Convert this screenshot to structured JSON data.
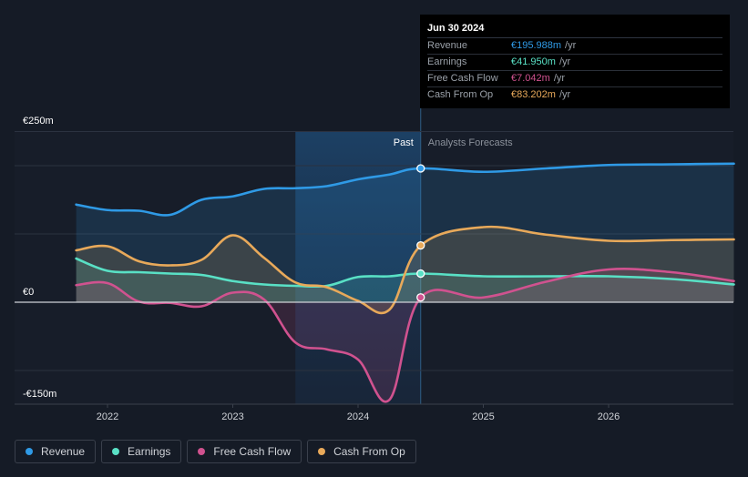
{
  "chart_data": {
    "type": "area",
    "x_ticks": [
      "2022",
      "2023",
      "2024",
      "2025",
      "2026"
    ],
    "y_tick_labels": [
      "€250m",
      "€0",
      "-€150m"
    ],
    "ylim": [
      -150,
      250
    ],
    "y_unit": "€m",
    "past_label": "Past",
    "forecast_label": "Analysts Forecasts",
    "divider_date": 2024.5,
    "highlight_range": [
      2023.5,
      2024.5
    ],
    "grid": true,
    "legend_position": "bottom-left",
    "series": [
      {
        "name": "Revenue",
        "color": "#2f9ae6",
        "x": [
          2021.75,
          2022.0,
          2022.25,
          2022.5,
          2022.75,
          2023.0,
          2023.25,
          2023.5,
          2023.75,
          2024.0,
          2024.25,
          2024.5,
          2025.0,
          2025.5,
          2026.0,
          2026.5,
          2027.0
        ],
        "y": [
          143,
          135,
          134,
          128,
          150,
          155,
          166,
          167,
          170,
          180,
          187,
          196,
          191,
          196,
          201,
          202,
          203
        ]
      },
      {
        "name": "Earnings",
        "color": "#59e0c5",
        "x": [
          2021.75,
          2022.0,
          2022.25,
          2022.5,
          2022.75,
          2023.0,
          2023.25,
          2023.5,
          2023.75,
          2024.0,
          2024.25,
          2024.5,
          2025.0,
          2025.5,
          2026.0,
          2026.5,
          2027.0
        ],
        "y": [
          64,
          46,
          44,
          42,
          40,
          31,
          26,
          24,
          24,
          37,
          38,
          42,
          38,
          38,
          38,
          34,
          26
        ]
      },
      {
        "name": "Free Cash Flow",
        "color": "#d0528f",
        "x": [
          2021.75,
          2022.0,
          2022.25,
          2022.5,
          2022.75,
          2023.0,
          2023.25,
          2023.5,
          2023.75,
          2024.0,
          2024.25,
          2024.5,
          2025.0,
          2025.5,
          2026.0,
          2026.5,
          2027.0
        ],
        "y": [
          25,
          28,
          1,
          -1,
          -6,
          14,
          4,
          -59,
          -69,
          -84,
          -143,
          7,
          7,
          30,
          48,
          44,
          31
        ]
      },
      {
        "name": "Cash From Op",
        "color": "#e8a95a",
        "x": [
          2021.75,
          2022.0,
          2022.25,
          2022.5,
          2022.75,
          2023.0,
          2023.25,
          2023.5,
          2023.75,
          2024.0,
          2024.25,
          2024.5,
          2025.0,
          2025.5,
          2026.0,
          2026.5,
          2027.0
        ],
        "y": [
          76,
          82,
          60,
          54,
          62,
          98,
          65,
          29,
          22,
          2,
          -11,
          83,
          110,
          99,
          90,
          91,
          92
        ]
      }
    ],
    "markers": [
      {
        "series": "Revenue",
        "x": 2024.5,
        "y": 195.988
      },
      {
        "series": "Earnings",
        "x": 2024.5,
        "y": 41.95
      },
      {
        "series": "Free Cash Flow",
        "x": 2024.5,
        "y": 7.042
      },
      {
        "series": "Cash From Op",
        "x": 2024.5,
        "y": 83.202
      }
    ]
  },
  "tooltip": {
    "date": "Jun 30 2024",
    "unit": "/yr",
    "rows": [
      {
        "label": "Revenue",
        "value": "€195.988m",
        "color": "#2f9ae6"
      },
      {
        "label": "Earnings",
        "value": "€41.950m",
        "color": "#59e0c5"
      },
      {
        "label": "Free Cash Flow",
        "value": "€7.042m",
        "color": "#d0528f"
      },
      {
        "label": "Cash From Op",
        "value": "€83.202m",
        "color": "#e8a95a"
      }
    ]
  },
  "legend": [
    {
      "label": "Revenue",
      "color": "#2f9ae6"
    },
    {
      "label": "Earnings",
      "color": "#59e0c5"
    },
    {
      "label": "Free Cash Flow",
      "color": "#d0528f"
    },
    {
      "label": "Cash From Op",
      "color": "#e8a95a"
    }
  ],
  "colors": {
    "background": "#151b26",
    "grid": "#2b3240",
    "zero_line": "#d0d3d8",
    "text": "#d0d3d8",
    "muted_text": "#8b919b"
  }
}
